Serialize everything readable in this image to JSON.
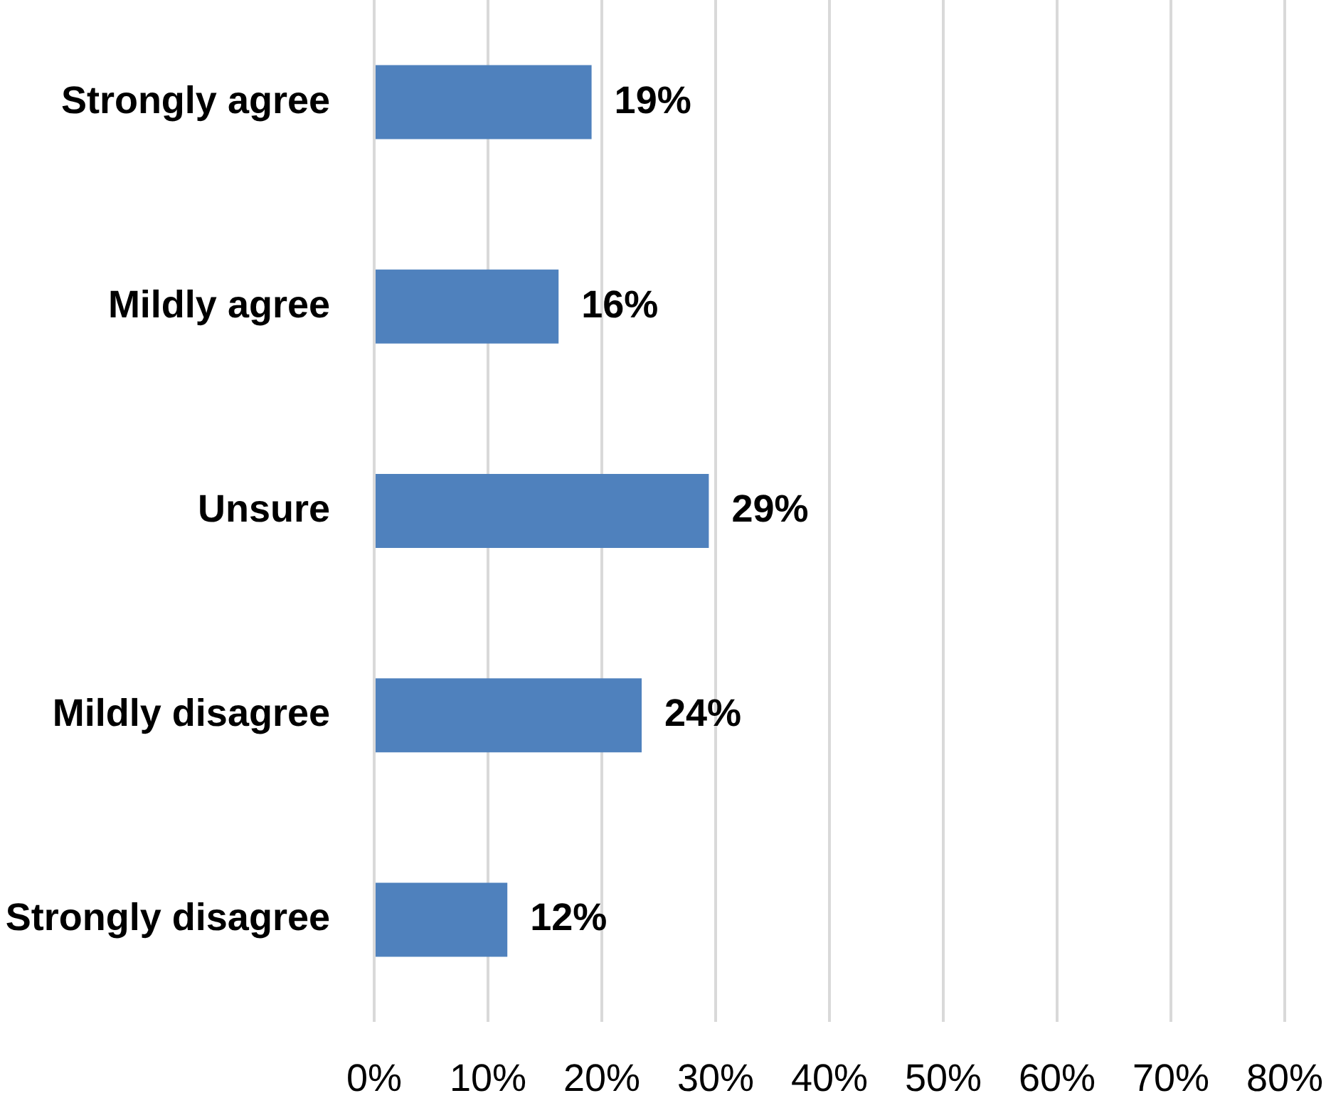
{
  "chart_data": {
    "type": "bar",
    "orientation": "horizontal",
    "categories": [
      "Strongly agree",
      "Mildly agree",
      "Unsure",
      "Mildly disagree",
      "Strongly disagree"
    ],
    "values": [
      19.1,
      16.2,
      29.4,
      23.5,
      11.7
    ],
    "value_labels": [
      "19%",
      "16%",
      "29%",
      "24%",
      "12%"
    ],
    "color": "#4f81bd",
    "xlim": [
      0,
      80
    ],
    "xticks": [
      {
        "value": 0,
        "label": "0%"
      },
      {
        "value": 10,
        "label": "10%"
      },
      {
        "value": 20,
        "label": "20%"
      },
      {
        "value": 30,
        "label": "30%"
      },
      {
        "value": 40,
        "label": "40%"
      },
      {
        "value": 50,
        "label": "50%"
      },
      {
        "value": 60,
        "label": "60%"
      },
      {
        "value": 70,
        "label": "70%"
      },
      {
        "value": 80,
        "label": "80%"
      }
    ],
    "grid": "x"
  }
}
